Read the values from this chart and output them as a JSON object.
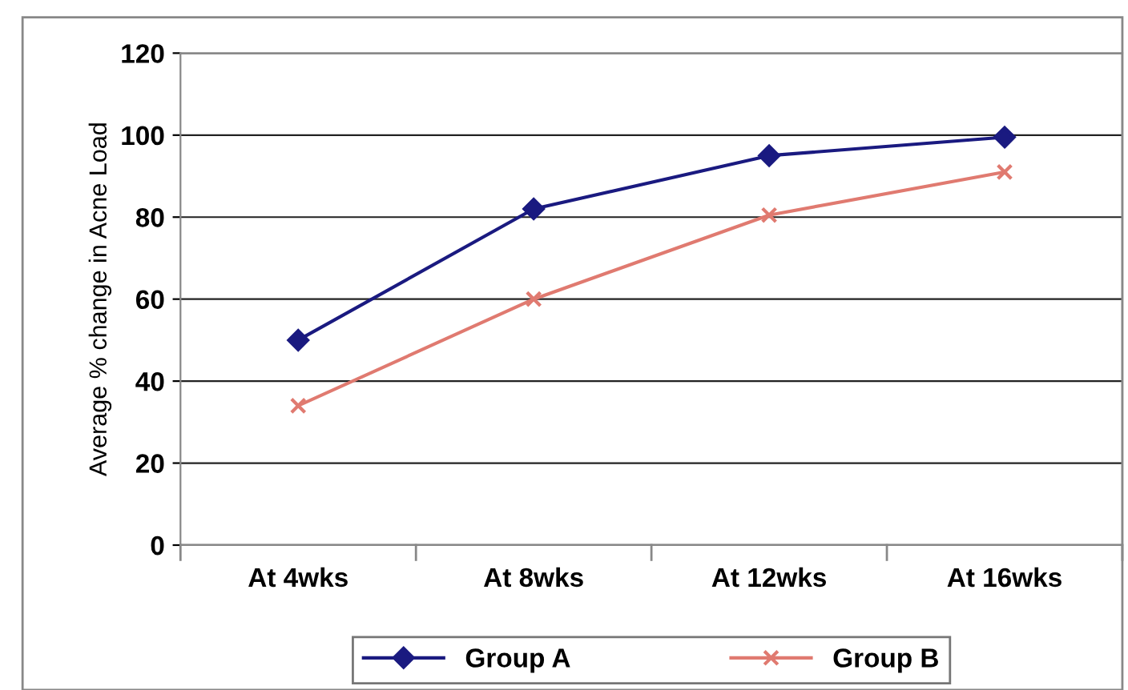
{
  "chart_data": {
    "type": "line",
    "ylabel": "Average % change in Acne Load",
    "categories": [
      "At 4wks",
      "At 8wks",
      "At 12wks",
      "At 16wks"
    ],
    "series": [
      {
        "name": "Group A",
        "color": "#1a1a80",
        "values": [
          50,
          82,
          95,
          99.5
        ],
        "marker": "diamond"
      },
      {
        "name": "Group B",
        "color": "#e07a70",
        "values": [
          34,
          60,
          80.5,
          91
        ],
        "marker": "cross"
      }
    ],
    "ylim": [
      0,
      120
    ],
    "yticks": [
      0,
      20,
      40,
      60,
      80,
      100,
      120
    ],
    "grid": "y",
    "legend": "bottom"
  }
}
